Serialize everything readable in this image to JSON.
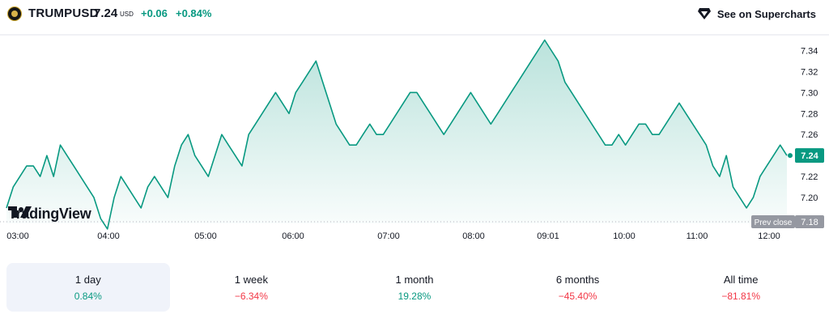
{
  "header": {
    "symbol": "TRUMPUSD",
    "price": "7.24",
    "currency": "USD",
    "change": "+0.06",
    "change_percent": "+0.84%",
    "supercharts_label": "See on Supercharts",
    "icons": {
      "logo": "trump-coin-logo",
      "supercharts": "tradingview-diamond-icon"
    }
  },
  "colors": {
    "up": "#089981",
    "down": "#f23645",
    "text": "#131722",
    "muted": "#787b86",
    "prev_close_bg": "#9598a1"
  },
  "watermark": "TradingView",
  "chart_data": {
    "type": "area",
    "x_tick_labels": [
      "03:00",
      "04:00",
      "05:00",
      "06:00",
      "07:00",
      "08:00",
      "09:01",
      "10:00",
      "11:00",
      "12:00"
    ],
    "y_tick_labels": [
      "7.34",
      "7.32",
      "7.30",
      "7.28",
      "7.26",
      "7.24",
      "7.22",
      "7.20"
    ],
    "ylim": [
      7.18,
      7.355
    ],
    "last_value": 7.24,
    "last_label": "7.24",
    "prev_close": 7.18,
    "prev_close_title": "Prev close",
    "prev_close_label": "7.18",
    "grid": false,
    "series": [
      {
        "values": [
          7.19,
          7.21,
          7.22,
          7.23,
          7.23,
          7.22,
          7.24,
          7.22,
          7.25,
          7.24,
          7.23,
          7.22,
          7.21,
          7.2,
          7.18,
          7.17,
          7.2,
          7.22,
          7.21,
          7.2,
          7.19,
          7.21,
          7.22,
          7.21,
          7.2,
          7.23,
          7.25,
          7.26,
          7.24,
          7.23,
          7.22,
          7.24,
          7.26,
          7.25,
          7.24,
          7.23,
          7.26,
          7.27,
          7.28,
          7.29,
          7.3,
          7.29,
          7.28,
          7.3,
          7.31,
          7.32,
          7.33,
          7.31,
          7.29,
          7.27,
          7.26,
          7.25,
          7.25,
          7.26,
          7.27,
          7.26,
          7.26,
          7.27,
          7.28,
          7.29,
          7.3,
          7.3,
          7.29,
          7.28,
          7.27,
          7.26,
          7.27,
          7.28,
          7.29,
          7.3,
          7.29,
          7.28,
          7.27,
          7.28,
          7.29,
          7.3,
          7.31,
          7.32,
          7.33,
          7.34,
          7.35,
          7.34,
          7.33,
          7.31,
          7.3,
          7.29,
          7.28,
          7.27,
          7.26,
          7.25,
          7.25,
          7.26,
          7.25,
          7.26,
          7.27,
          7.27,
          7.26,
          7.26,
          7.27,
          7.28,
          7.29,
          7.28,
          7.27,
          7.26,
          7.25,
          7.23,
          7.22,
          7.24,
          7.21,
          7.2,
          7.19,
          7.2,
          7.22,
          7.23,
          7.24,
          7.25,
          7.24
        ]
      }
    ]
  },
  "tabs": [
    {
      "label": "1 day",
      "value": "0.84%",
      "direction": "up",
      "active": true
    },
    {
      "label": "1 week",
      "value": "−6.34%",
      "direction": "down",
      "active": false
    },
    {
      "label": "1 month",
      "value": "19.28%",
      "direction": "up",
      "active": false
    },
    {
      "label": "6 months",
      "value": "−45.40%",
      "direction": "down",
      "active": false
    },
    {
      "label": "All time",
      "value": "−81.81%",
      "direction": "down",
      "active": false
    }
  ]
}
